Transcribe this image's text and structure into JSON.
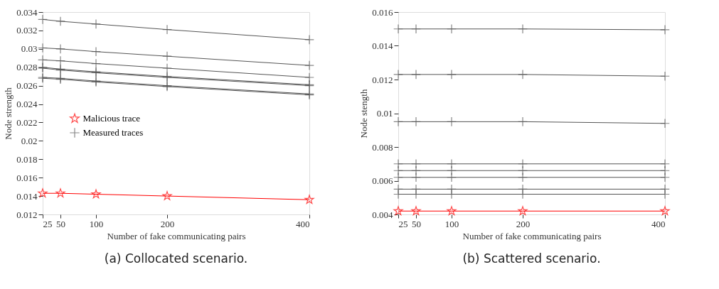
{
  "chart_data": [
    {
      "type": "line",
      "title": "(a)  Collocated scenario.",
      "xlabel": "Number of fake communicating pairs",
      "ylabel": "Node strength",
      "legend": "left",
      "grid": false,
      "x": [
        25,
        50,
        100,
        200,
        400
      ],
      "xlim": [
        25,
        400
      ],
      "xticks": [
        25,
        50,
        100,
        200,
        400
      ],
      "ylim": [
        0.012,
        0.034
      ],
      "yticks": [
        0.012,
        0.014,
        0.016,
        0.018,
        0.02,
        0.022,
        0.024,
        0.026,
        0.028,
        0.03,
        0.032,
        0.034
      ],
      "series": [
        {
          "name": "Malicious trace",
          "color": "#ff0000",
          "marker": "star",
          "values": [
            0.0143,
            0.0143,
            0.0142,
            0.014,
            0.0136
          ]
        },
        {
          "name": "Measured traces",
          "color": "#555555",
          "marker": "cross",
          "values": [
            0.0332,
            0.033,
            0.0327,
            0.0321,
            0.031
          ]
        },
        {
          "color": "#555555",
          "marker": "cross",
          "values": [
            0.0301,
            0.03,
            0.0297,
            0.0292,
            0.0282
          ]
        },
        {
          "color": "#555555",
          "marker": "cross",
          "values": [
            0.0288,
            0.0287,
            0.0284,
            0.0279,
            0.0269
          ]
        },
        {
          "color": "#555555",
          "marker": "cross",
          "values": [
            0.028,
            0.0278,
            0.0275,
            0.027,
            0.0261
          ]
        },
        {
          "color": "#555555",
          "marker": "cross",
          "values": [
            0.0279,
            0.0277,
            0.0274,
            0.0269,
            0.026
          ]
        },
        {
          "color": "#555555",
          "marker": "cross",
          "values": [
            0.0269,
            0.0268,
            0.0265,
            0.026,
            0.0251
          ]
        },
        {
          "color": "#555555",
          "marker": "cross",
          "values": [
            0.0268,
            0.0267,
            0.0264,
            0.0259,
            0.025
          ]
        }
      ]
    },
    {
      "type": "line",
      "title": "(b)  Scattered scenario.",
      "xlabel": "Number of fake communicating pairs",
      "ylabel": "Node stength",
      "legend": "top left",
      "grid": false,
      "x": [
        25,
        50,
        100,
        200,
        400
      ],
      "xlim": [
        25,
        400
      ],
      "xticks": [
        25,
        50,
        100,
        200,
        400
      ],
      "ylim": [
        0.004,
        0.016
      ],
      "yticks": [
        0.004,
        0.006,
        0.008,
        0.01,
        0.012,
        0.014,
        0.016
      ],
      "series": [
        {
          "name": "Malicious trace",
          "color": "#ff0000",
          "marker": "star",
          "values": [
            0.0042,
            0.0042,
            0.0042,
            0.0042,
            0.0042
          ]
        },
        {
          "name": "Measured traces",
          "color": "#555555",
          "marker": "cross",
          "values": [
            0.015,
            0.015,
            0.015,
            0.015,
            0.01495
          ]
        },
        {
          "color": "#555555",
          "marker": "cross",
          "values": [
            0.0123,
            0.0123,
            0.0123,
            0.0123,
            0.0122
          ]
        },
        {
          "color": "#555555",
          "marker": "cross",
          "values": [
            0.0095,
            0.0095,
            0.0095,
            0.0095,
            0.0094
          ]
        },
        {
          "color": "#555555",
          "marker": "cross",
          "values": [
            0.007,
            0.007,
            0.007,
            0.007,
            0.007
          ]
        },
        {
          "color": "#555555",
          "marker": "cross",
          "values": [
            0.0066,
            0.0066,
            0.0066,
            0.0066,
            0.0066
          ]
        },
        {
          "color": "#555555",
          "marker": "cross",
          "values": [
            0.0062,
            0.0062,
            0.0062,
            0.0062,
            0.0062
          ]
        },
        {
          "color": "#555555",
          "marker": "cross",
          "values": [
            0.0055,
            0.0055,
            0.0055,
            0.0055,
            0.0055
          ]
        },
        {
          "color": "#555555",
          "marker": "cross",
          "values": [
            0.0052,
            0.0052,
            0.0052,
            0.0052,
            0.0052
          ]
        }
      ]
    }
  ]
}
